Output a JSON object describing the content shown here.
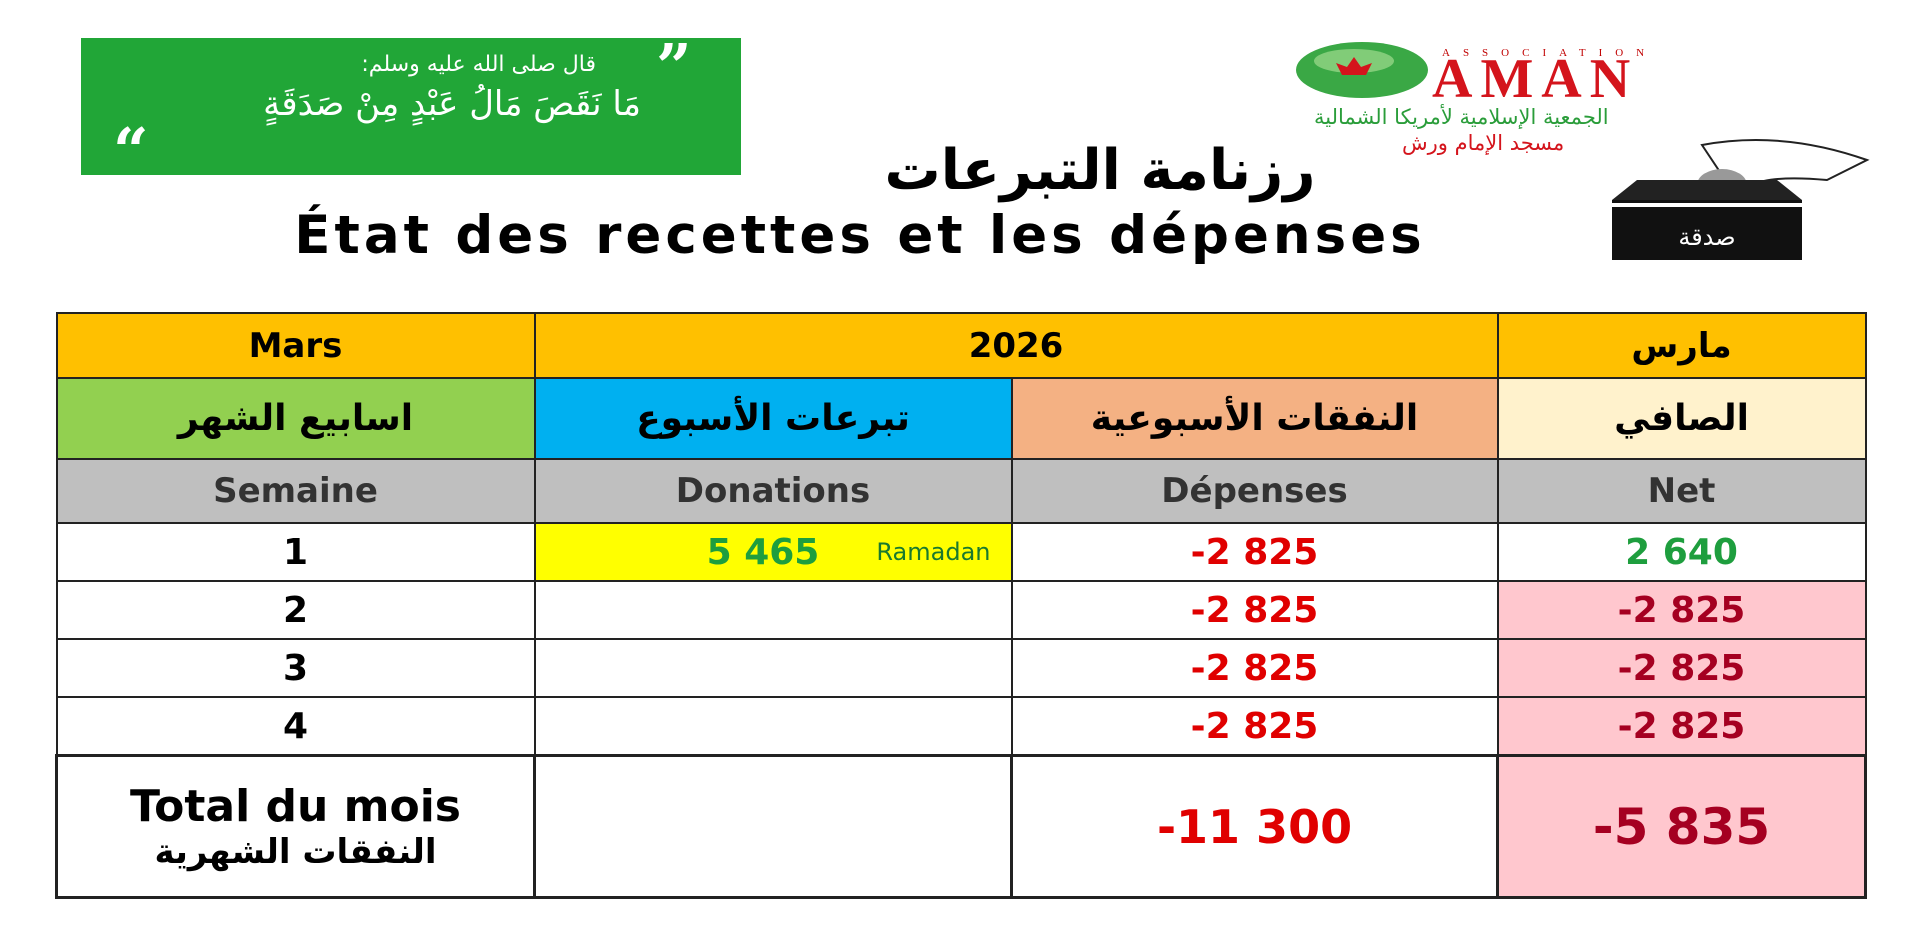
{
  "quote": {
    "intro": "قال صلى الله عليه وسلم:",
    "text": "مَا نَقَصَ مَالُ عَبْدٍ مِنْ صَدَقَةٍ",
    "open_mark": "”",
    "close_mark": "“"
  },
  "logo": {
    "letters": "ASSOCIATION",
    "name": "AMAN",
    "org": "الجمعية الإسلامية لأمريكا الشمالية",
    "mosque": "مسجد الإمام ورش"
  },
  "header": {
    "title_ar": "رزنامة التبرعات",
    "title_fr": "État des recettes et les dépenses"
  },
  "box_label": "صدقة",
  "table": {
    "month_fr": "Mars",
    "year": "2026",
    "month_ar": "مارس",
    "headers_ar": [
      "اسابيع الشهر",
      "تبرعات الأسبوع",
      "النفقات الأسبوعية",
      "الصافي"
    ],
    "headers_fr": [
      "Semaine",
      "Donations",
      "Dépenses",
      "Net"
    ],
    "rows": [
      [
        "1",
        "5 465",
        "-2 825",
        "2 640"
      ],
      [
        "2",
        null,
        "-2 825",
        "-2 825"
      ],
      [
        "3",
        null,
        "-2 825",
        "-2 825"
      ],
      [
        "4",
        null,
        "-2 825",
        "-2 825"
      ]
    ],
    "note": "Ramadan",
    "total": {
      "label_fr": "Total du mois",
      "label_ar": "النفقات الشهرية",
      "donations": null,
      "depenses": "-11 300",
      "net": "-5 835"
    }
  }
}
